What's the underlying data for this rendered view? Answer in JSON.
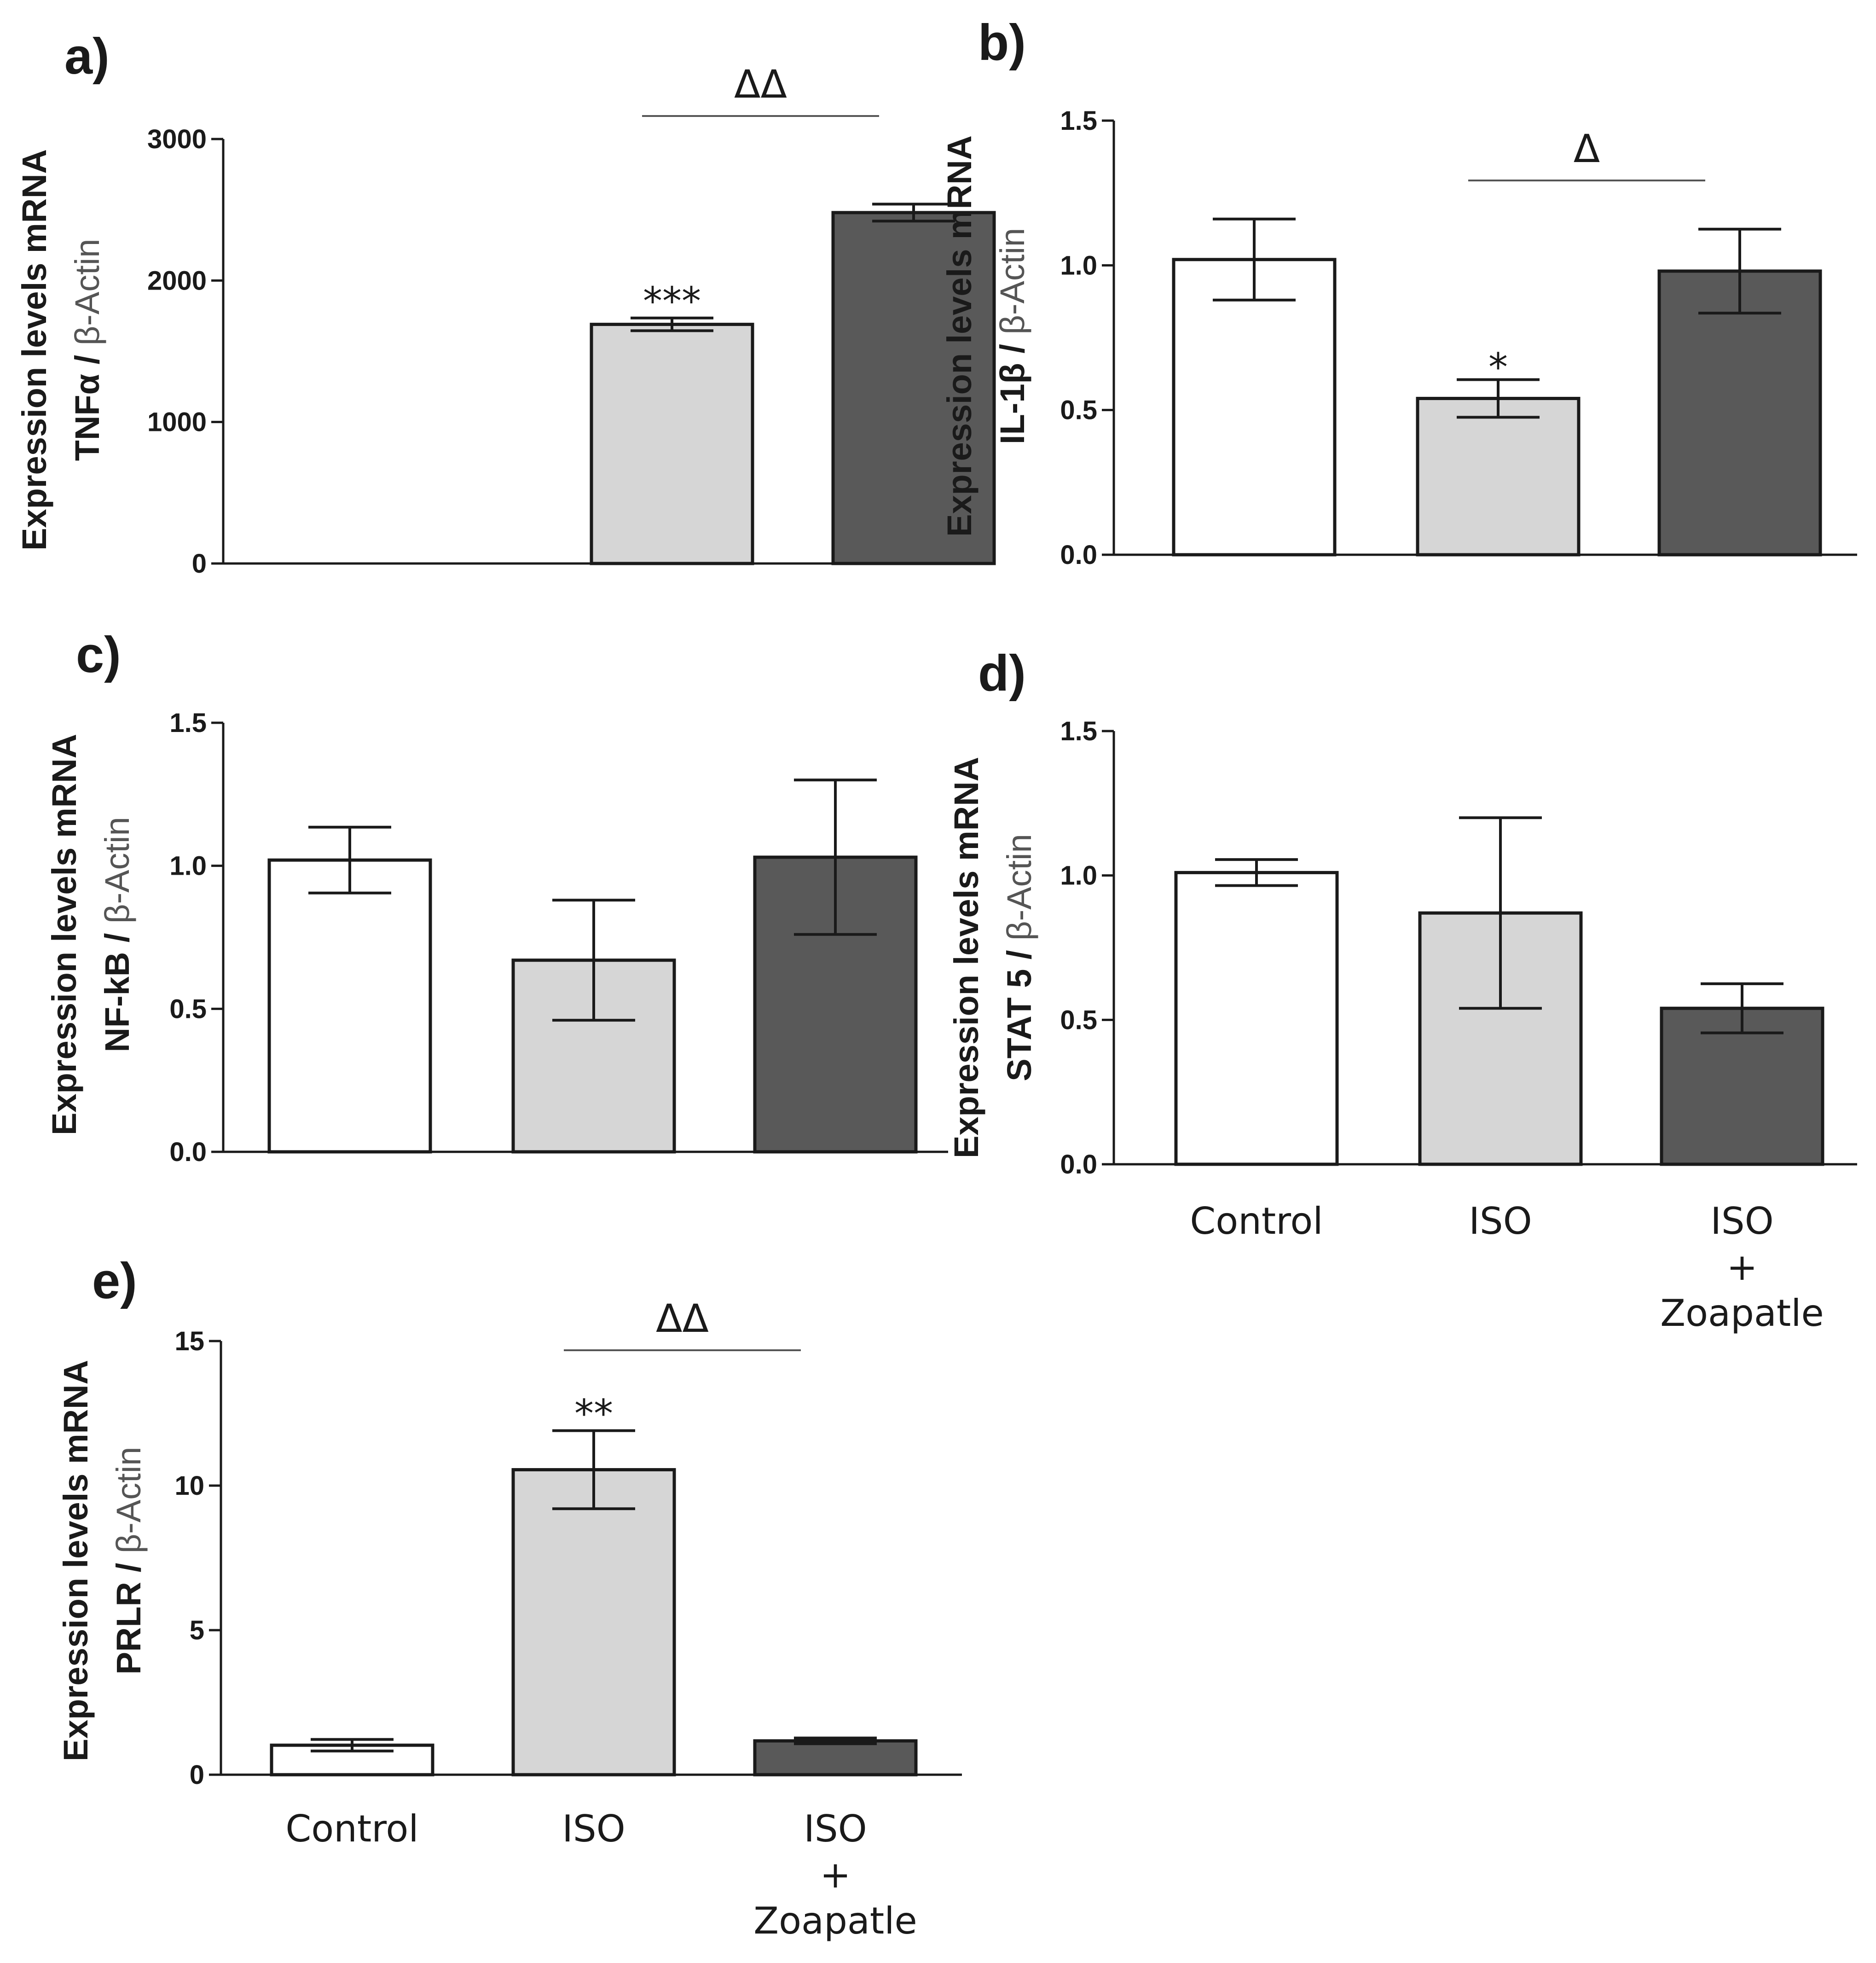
{
  "colors": {
    "Control": "#ffffff",
    "ISO": "#d6d6d6",
    "ISO + Zoapatle": "#595959",
    "axis": "#1a1a1a"
  },
  "categories": [
    {
      "key": "Control",
      "lines": [
        "Control"
      ]
    },
    {
      "key": "ISO",
      "lines": [
        "ISO"
      ]
    },
    {
      "key": "ISO + Zoapatle",
      "lines": [
        "ISO",
        "+",
        "Zoapatle"
      ]
    }
  ],
  "chart_data": [
    {
      "type": "bar",
      "panel": "a)",
      "ylabel_line1": "Expression levels mRNA",
      "ylabel_gene": "TNFα",
      "ylabel_sep": " / ",
      "ylabel_ref": "β-Actin",
      "ylim": [
        0,
        3000
      ],
      "yticks": [
        {
          "value": 0,
          "label": "0"
        },
        {
          "value": 1000,
          "label": "1000"
        },
        {
          "value": 2000,
          "label": "2000"
        },
        {
          "value": 3000,
          "label": "3000"
        }
      ],
      "categories": [
        "Control",
        "ISO",
        "ISO + Zoapatle"
      ],
      "values": [
        0,
        1690,
        2480
      ],
      "errors": [
        0,
        45,
        60
      ],
      "show_category_labels": false,
      "annotations": [
        {
          "category": 1,
          "text": "***"
        }
      ],
      "brackets": [
        {
          "from": 1,
          "to": 2,
          "text": "ΔΔ"
        }
      ]
    },
    {
      "type": "bar",
      "panel": "b)",
      "ylabel_line1": "Expression levels mRNA",
      "ylabel_gene": "IL-1β",
      "ylabel_sep": " / ",
      "ylabel_ref": "β-Actin",
      "ylim": [
        0,
        1.5
      ],
      "yticks": [
        {
          "value": 0,
          "label": "0.0"
        },
        {
          "value": 0.5,
          "label": "0.5"
        },
        {
          "value": 1.0,
          "label": "1.0"
        },
        {
          "value": 1.5,
          "label": "1.5"
        }
      ],
      "categories": [
        "Control",
        "ISO",
        "ISO + Zoapatle"
      ],
      "values": [
        1.02,
        0.54,
        0.98
      ],
      "errors": [
        0.14,
        0.065,
        0.145
      ],
      "show_category_labels": false,
      "annotations": [
        {
          "category": 1,
          "text": "*"
        }
      ],
      "brackets": [
        {
          "from": 1,
          "to": 2,
          "text": "Δ"
        }
      ]
    },
    {
      "type": "bar",
      "panel": "c)",
      "ylabel_line1": "Expression levels mRNA",
      "ylabel_gene": "NF-kB",
      "ylabel_sep": " / ",
      "ylabel_ref": "β-Actin",
      "ylim": [
        0,
        1.5
      ],
      "yticks": [
        {
          "value": 0,
          "label": "0.0"
        },
        {
          "value": 0.5,
          "label": "0.5"
        },
        {
          "value": 1.0,
          "label": "1.0"
        },
        {
          "value": 1.5,
          "label": "1.5"
        }
      ],
      "categories": [
        "Control",
        "ISO",
        "ISO + Zoapatle"
      ],
      "values": [
        1.02,
        0.67,
        1.03
      ],
      "errors": [
        0.115,
        0.21,
        0.27
      ],
      "show_category_labels": false,
      "annotations": [],
      "brackets": []
    },
    {
      "type": "bar",
      "panel": "d)",
      "ylabel_line1": "Expression levels mRNA",
      "ylabel_gene": "STAT 5",
      "ylabel_sep": " / ",
      "ylabel_ref": "β-Actin",
      "ylim": [
        0,
        1.5
      ],
      "yticks": [
        {
          "value": 0,
          "label": "0.0"
        },
        {
          "value": 0.5,
          "label": "0.5"
        },
        {
          "value": 1.0,
          "label": "1.0"
        },
        {
          "value": 1.5,
          "label": "1.5"
        }
      ],
      "categories": [
        "Control",
        "ISO",
        "ISO + Zoapatle"
      ],
      "values": [
        1.01,
        0.87,
        0.54
      ],
      "errors": [
        0.045,
        0.33,
        0.085
      ],
      "show_category_labels": true,
      "annotations": [],
      "brackets": []
    },
    {
      "type": "bar",
      "panel": "e)",
      "ylabel_line1": "Expression levels mRNA",
      "ylabel_gene": "PRLR",
      "ylabel_sep": " / ",
      "ylabel_ref": "β-Actin",
      "ylim": [
        0,
        15
      ],
      "yticks": [
        {
          "value": 0,
          "label": "0"
        },
        {
          "value": 5,
          "label": "5"
        },
        {
          "value": 10,
          "label": "10"
        },
        {
          "value": 15,
          "label": "15"
        }
      ],
      "categories": [
        "Control",
        "ISO",
        "ISO + Zoapatle"
      ],
      "values": [
        1.02,
        10.55,
        1.17
      ],
      "errors": [
        0.2,
        1.35,
        0.1
      ],
      "show_category_labels": true,
      "annotations": [
        {
          "category": 1,
          "text": "**"
        }
      ],
      "brackets": [
        {
          "from": 1,
          "to": 2,
          "text": "ΔΔ"
        }
      ]
    }
  ]
}
